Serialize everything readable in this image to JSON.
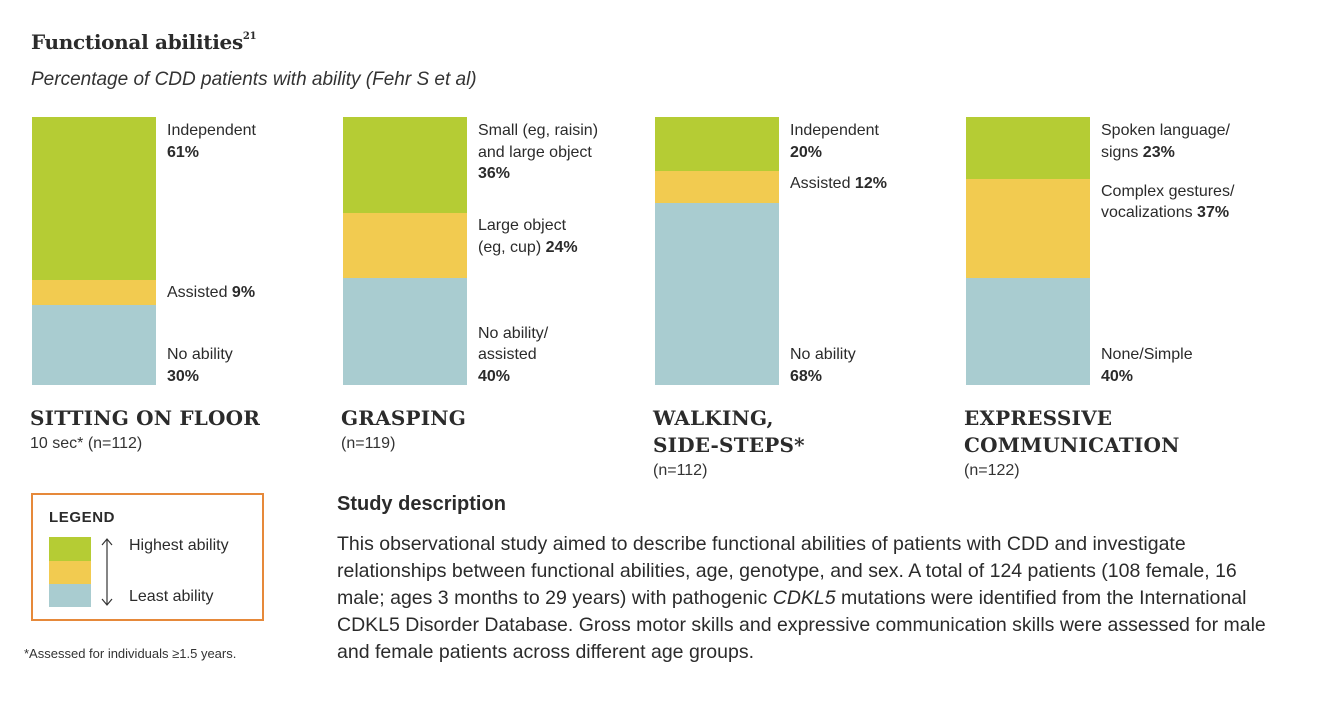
{
  "title": "Functional abilities",
  "title_ref": "21",
  "subtitle": "Percentage of CDD patients with ability (Fehr S et al)",
  "colors": {
    "high": "#b5cc34",
    "mid": "#f2cb50",
    "low": "#a9ccd0",
    "legend_border": "#e6893a"
  },
  "chart_data": [
    {
      "type": "bar",
      "title_lines": [
        "SITTING ON FLOOR"
      ],
      "subtitle": "10 sec* (n=112)",
      "segments": [
        {
          "label_lines": [
            "Independent"
          ],
          "pct_text": "61%",
          "pct_inline": false,
          "value": 61,
          "color": "high"
        },
        {
          "label_lines": [
            "Assisted"
          ],
          "pct_text": "9%",
          "pct_inline": true,
          "value": 9,
          "color": "mid"
        },
        {
          "label_lines": [
            "No ability"
          ],
          "pct_text": "30%",
          "pct_inline": false,
          "value": 30,
          "color": "low"
        }
      ]
    },
    {
      "type": "bar",
      "title_lines": [
        "GRASPING"
      ],
      "subtitle": "(n=119)",
      "segments": [
        {
          "label_lines": [
            "Small (eg, raisin)",
            "and large object"
          ],
          "pct_text": "36%",
          "pct_inline": false,
          "value": 36,
          "color": "high"
        },
        {
          "label_lines": [
            "Large object",
            "(eg, cup)"
          ],
          "pct_text": "24%",
          "pct_inline": true,
          "value": 24,
          "color": "mid"
        },
        {
          "label_lines": [
            "No ability/",
            "assisted"
          ],
          "pct_text": "40%",
          "pct_inline": false,
          "value": 40,
          "color": "low"
        }
      ]
    },
    {
      "type": "bar",
      "title_lines": [
        "WALKING,",
        "SIDE-STEPS*"
      ],
      "subtitle": "(n=112)",
      "segments": [
        {
          "label_lines": [
            "Independent"
          ],
          "pct_text": "20%",
          "pct_inline": false,
          "value": 20,
          "color": "high"
        },
        {
          "label_lines": [
            "Assisted"
          ],
          "pct_text": "12%",
          "pct_inline": true,
          "value": 12,
          "color": "mid"
        },
        {
          "label_lines": [
            "No ability"
          ],
          "pct_text": "68%",
          "pct_inline": false,
          "value": 68,
          "color": "low"
        }
      ]
    },
    {
      "type": "bar",
      "title_lines": [
        "EXPRESSIVE",
        "COMMUNICATION"
      ],
      "subtitle": "(n=122)",
      "segments": [
        {
          "label_lines": [
            "Spoken language/",
            "signs"
          ],
          "pct_text": "23%",
          "pct_inline": true,
          "value": 23,
          "color": "high"
        },
        {
          "label_lines": [
            "Complex gestures/",
            "vocalizations"
          ],
          "pct_text": "37%",
          "pct_inline": true,
          "value": 37,
          "color": "mid"
        },
        {
          "label_lines": [
            "None/Simple"
          ],
          "pct_text": "40%",
          "pct_inline": false,
          "value": 40,
          "color": "low"
        }
      ]
    }
  ],
  "legend": {
    "title": "LEGEND",
    "high_label": "Highest ability",
    "low_label": "Least ability"
  },
  "footnote": "*Assessed for individuals ≥1.5 years.",
  "study": {
    "title": "Study description",
    "text_before": "This observational study aimed to describe functional abilities of patients with CDD and investigate relationships between functional abilities, age, genotype, and sex. A total of 124 patients (108 female, 16 male; ages 3 months to 29 years) with pathogenic ",
    "text_italic": "CDKL5",
    "text_after": " mutations were identified from the International CDKL5 Disorder Database. Gross motor skills and expressive communication skills were assessed for male and female patients across different age groups."
  }
}
